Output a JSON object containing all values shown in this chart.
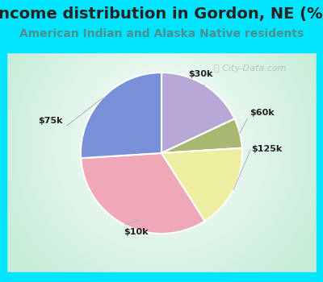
{
  "title": "Income distribution in Gordon, NE (%)",
  "subtitle": "American Indian and Alaska Native residents",
  "title_color": "#222222",
  "subtitle_color": "#4a9090",
  "bg_color": "#00e5ff",
  "labels": [
    "$30k",
    "$60k",
    "$125k",
    "$10k",
    "$75k"
  ],
  "values": [
    18,
    6,
    17,
    33,
    26
  ],
  "colors": [
    "#b8a8d8",
    "#a8b870",
    "#eeeea0",
    "#f0a8b8",
    "#7890d8"
  ],
  "startangle": 90,
  "watermark": "City-Data.com",
  "title_fontsize": 14,
  "subtitle_fontsize": 10
}
